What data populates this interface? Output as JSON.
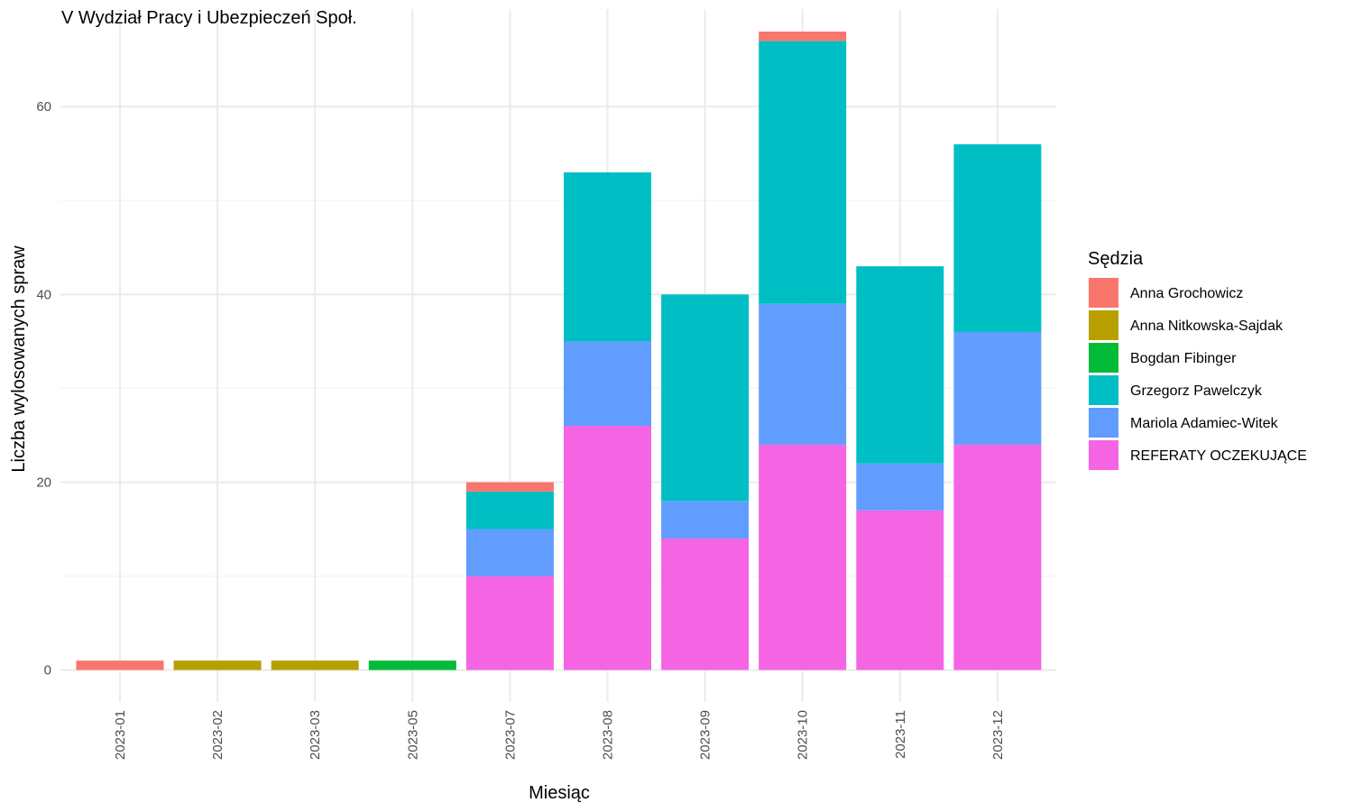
{
  "chart_data": {
    "type": "bar",
    "stacked": true,
    "title": "V Wydział Pracy i Ubezpieczeń Społ.",
    "xlabel": "Miesiąc",
    "ylabel": "Liczba wylosowanych spraw",
    "ylim": [
      -3.4,
      70.4
    ],
    "yticks": [
      0,
      20,
      40,
      60
    ],
    "grid": true,
    "legend_position": "right",
    "legend_title": "Sędzia",
    "categories": [
      "2023-01",
      "2023-02",
      "2023-03",
      "2023-05",
      "2023-07",
      "2023-08",
      "2023-09",
      "2023-10",
      "2023-11",
      "2023-12"
    ],
    "series": [
      {
        "name": "Anna Grochowicz",
        "color": "#F8766D",
        "values": [
          1,
          0,
          0,
          0,
          1,
          0,
          0,
          1,
          0,
          0
        ]
      },
      {
        "name": "Anna Nitkowska-Sajdak",
        "color": "#B79F00",
        "values": [
          0,
          1,
          1,
          0,
          0,
          0,
          0,
          0,
          0,
          0
        ]
      },
      {
        "name": "Bogdan Fibinger",
        "color": "#00BA38",
        "values": [
          0,
          0,
          0,
          1,
          0,
          0,
          0,
          0,
          0,
          0
        ]
      },
      {
        "name": "Grzegorz Pawelczyk",
        "color": "#00BFC4",
        "values": [
          0,
          0,
          0,
          0,
          4,
          18,
          22,
          28,
          21,
          20
        ]
      },
      {
        "name": "Mariola Adamiec-Witek",
        "color": "#619CFF",
        "values": [
          0,
          0,
          0,
          0,
          5,
          9,
          4,
          15,
          5,
          12
        ]
      },
      {
        "name": "REFERATY OCZEKUJĄCE",
        "color": "#F564E3",
        "values": [
          0,
          0,
          0,
          0,
          10,
          26,
          14,
          24,
          17,
          24
        ]
      }
    ]
  }
}
